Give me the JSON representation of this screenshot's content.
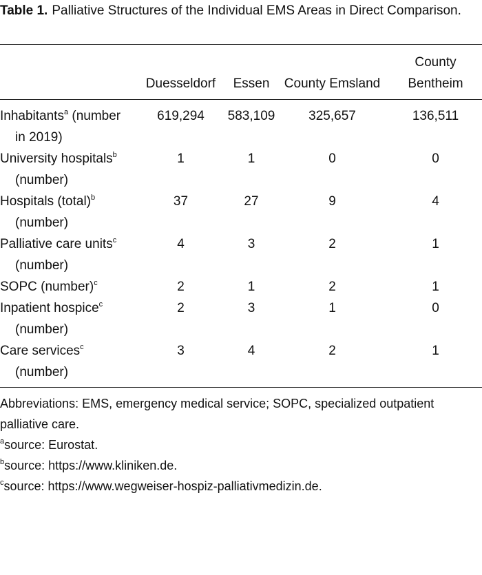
{
  "caption": {
    "label": "Table 1.",
    "title": "Palliative Structures of the Individual EMS Areas in Direct Comparison."
  },
  "table": {
    "columns": [
      "Duesseldorf",
      "Essen",
      "County Emsland",
      "County Bentheim"
    ],
    "rows": [
      {
        "label": "Inhabitants",
        "sup": "a",
        "note": "(number in 2019)",
        "cells": [
          "619,294",
          "583,109",
          "325,657",
          "136,511"
        ]
      },
      {
        "label": "University hospitals",
        "sup": "b",
        "note": "(number)",
        "cells": [
          "1",
          "1",
          "0",
          "0"
        ]
      },
      {
        "label": "Hospitals (total)",
        "sup": "b",
        "note": "(number)",
        "cells": [
          "37",
          "27",
          "9",
          "4"
        ]
      },
      {
        "label": "Palliative care units",
        "sup": "c",
        "note": "(number)",
        "cells": [
          "4",
          "3",
          "2",
          "1"
        ]
      },
      {
        "label": "SOPC (number)",
        "sup": "c",
        "cells": [
          "2",
          "1",
          "2",
          "1"
        ]
      },
      {
        "label": "Inpatient hospice",
        "sup": "c",
        "note": "(number)",
        "cells": [
          "2",
          "3",
          "1",
          "0"
        ]
      },
      {
        "label": "Care services",
        "sup": "c",
        "note": "(number)",
        "cells": [
          "3",
          "4",
          "2",
          "1"
        ]
      }
    ]
  },
  "footnotes": {
    "abbreviations": "Abbreviations: EMS, emergency medical service; SOPC, specialized outpatient palliative care.",
    "notes": [
      {
        "sup": "a",
        "text": "source: Eurostat."
      },
      {
        "sup": "b",
        "text": "source: https://www.kliniken.de."
      },
      {
        "sup": "c",
        "text": "source: https://www.wegweiser-hospiz-palliativmedizin.de."
      }
    ]
  }
}
